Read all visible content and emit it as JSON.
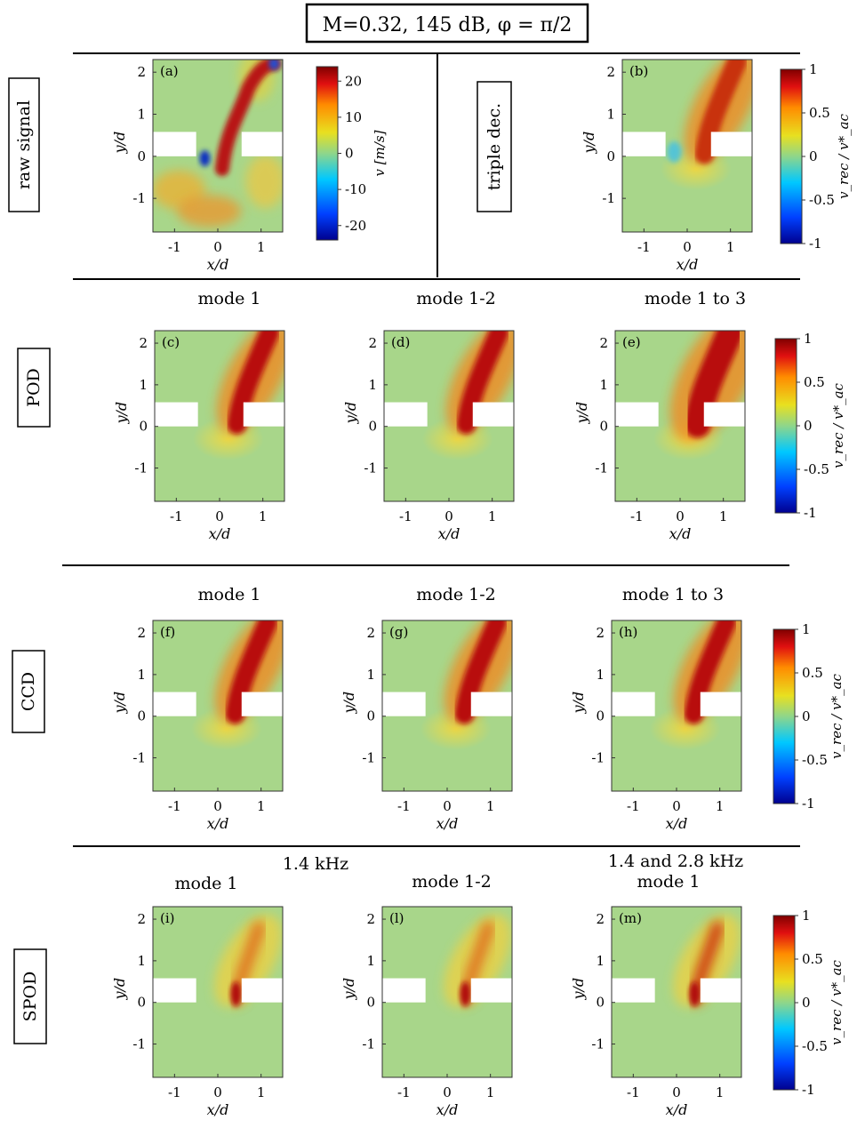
{
  "title": "M=0.32, 145 dB, φ = π/2",
  "axes": {
    "xlabel": "x/d",
    "ylabel": "y/d"
  },
  "xticks": [
    "-1",
    "0",
    "1"
  ],
  "yticks": [
    "2",
    "1",
    "0",
    "-1"
  ],
  "row_labels": {
    "raw": "raw signal",
    "triple": "triple dec.",
    "pod": "POD",
    "ccd": "CCD",
    "spod": "SPOD"
  },
  "col_titles": {
    "mode1": "mode 1",
    "mode12": "mode 1-2",
    "mode13": "mode 1 to 3",
    "spod_freq1": "1.4 kHz",
    "spod_freq2": "1.4 and 2.8  kHz"
  },
  "panels": {
    "a": "(a)",
    "b": "(b)",
    "c": "(c)",
    "d": "(d)",
    "e": "(e)",
    "f": "(f)",
    "g": "(g)",
    "h": "(h)",
    "i": "(i)",
    "l": "(l)",
    "m": "(m)"
  },
  "colorbar_raw": {
    "ticks": [
      "20",
      "10",
      "0",
      "-10",
      "-20"
    ],
    "label": "v [m/s]"
  },
  "colorbar_norm": {
    "ticks": [
      "1",
      "0.5",
      "0",
      "-0.5",
      "-1"
    ],
    "label": "v_rec / v*_ac"
  },
  "colors": {
    "background": "#a8d68a",
    "jet_core": "#b01010",
    "negative": "#0a1a8a"
  }
}
